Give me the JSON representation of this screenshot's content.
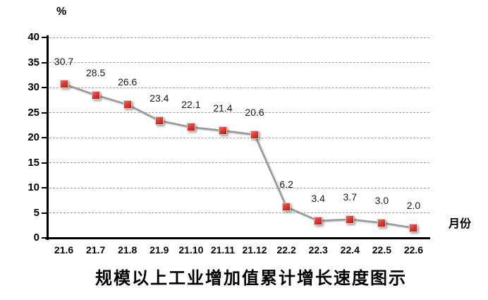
{
  "chart_data": {
    "type": "line",
    "title": "规模以上工业增加值累计增长速度图示",
    "y_unit_label": "%",
    "x_axis_label": "月份",
    "categories": [
      "21.6",
      "21.7",
      "21.8",
      "21.9",
      "21.10",
      "21.11",
      "21.12",
      "22.2",
      "22.3",
      "22.4",
      "22.5",
      "22.6"
    ],
    "values": [
      30.7,
      28.5,
      26.6,
      23.4,
      22.1,
      21.4,
      20.6,
      6.2,
      3.4,
      3.7,
      3.0,
      2.0
    ],
    "point_labels": [
      "30.7",
      "28.5",
      "26.6",
      "23.4",
      "22.1",
      "21.4",
      "20.6",
      "6.2",
      "3.4",
      "3.7",
      "3.0",
      "2.0"
    ],
    "ylim": [
      0,
      40
    ],
    "y_tick_step": 5,
    "y_ticks": [
      0,
      5,
      10,
      15,
      20,
      25,
      30,
      35,
      40
    ],
    "grid": "horizontal-dashed",
    "legend": "none",
    "colors": {
      "marker_fill": "#d9342b",
      "marker_border": "#cfcfcf",
      "line": "#999999",
      "axis": "#000000",
      "gridline": "#9c9c9c",
      "data_label_text": "#1a1a1a"
    }
  }
}
